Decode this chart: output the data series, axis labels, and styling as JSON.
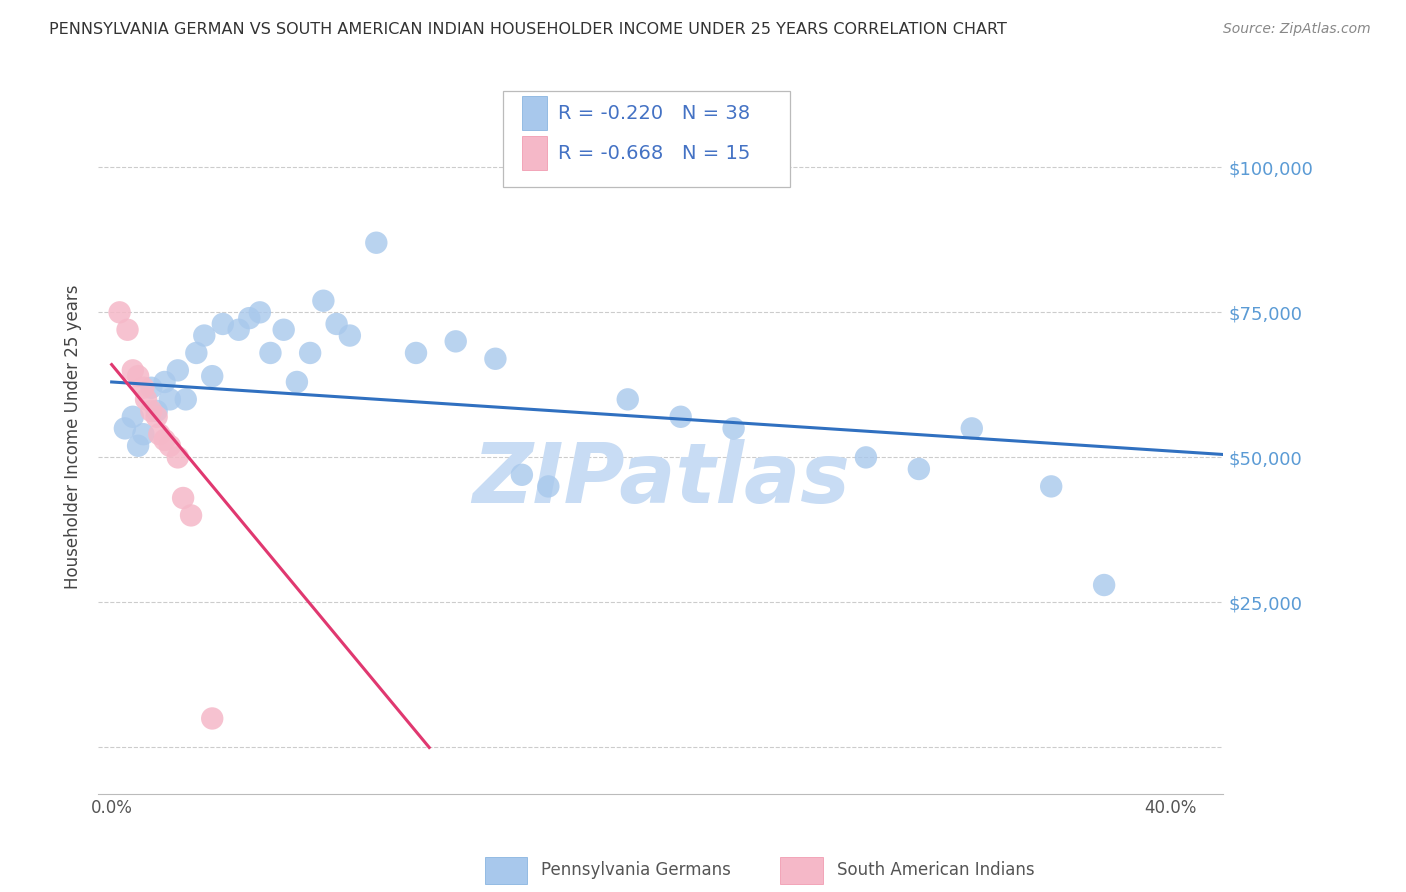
{
  "title": "PENNSYLVANIA GERMAN VS SOUTH AMERICAN INDIAN HOUSEHOLDER INCOME UNDER 25 YEARS CORRELATION CHART",
  "source": "Source: ZipAtlas.com",
  "ylabel": "Householder Income Under 25 years",
  "xlim": [
    -0.005,
    0.42
  ],
  "ylim": [
    -8000,
    115000
  ],
  "xticks": [
    0.0,
    0.05,
    0.1,
    0.15,
    0.2,
    0.25,
    0.3,
    0.35,
    0.4
  ],
  "xticklabels": [
    "0.0%",
    "",
    "",
    "",
    "",
    "",
    "",
    "",
    "40.0%"
  ],
  "ytick_values": [
    0,
    25000,
    50000,
    75000,
    100000
  ],
  "ytick_labels": [
    "",
    "$25,000",
    "$50,000",
    "$75,000",
    "$100,000"
  ],
  "blue_scatter_color": "#A8C8EC",
  "pink_scatter_color": "#F5B8C8",
  "blue_line_color": "#3070C0",
  "pink_line_color": "#E03870",
  "watermark_color": "#C8DCF4",
  "legend_blue_r": "R = -0.220",
  "legend_blue_n": "N = 38",
  "legend_pink_r": "R = -0.668",
  "legend_pink_n": "N = 15",
  "legend_blue_label": "Pennsylvania Germans",
  "legend_pink_label": "South American Indians",
  "legend_text_color": "#4472C4",
  "blue_scatter_x": [
    0.005,
    0.008,
    0.01,
    0.012,
    0.015,
    0.017,
    0.02,
    0.022,
    0.025,
    0.028,
    0.032,
    0.035,
    0.038,
    0.042,
    0.048,
    0.052,
    0.056,
    0.06,
    0.065,
    0.07,
    0.075,
    0.08,
    0.085,
    0.09,
    0.1,
    0.115,
    0.13,
    0.145,
    0.155,
    0.165,
    0.195,
    0.215,
    0.235,
    0.285,
    0.305,
    0.325,
    0.355,
    0.375
  ],
  "blue_scatter_y": [
    55000,
    57000,
    52000,
    54000,
    62000,
    58000,
    63000,
    60000,
    65000,
    60000,
    68000,
    71000,
    64000,
    73000,
    72000,
    74000,
    75000,
    68000,
    72000,
    63000,
    68000,
    77000,
    73000,
    71000,
    87000,
    68000,
    70000,
    67000,
    47000,
    45000,
    60000,
    57000,
    55000,
    50000,
    48000,
    55000,
    45000,
    28000
  ],
  "pink_scatter_x": [
    0.003,
    0.006,
    0.008,
    0.01,
    0.012,
    0.013,
    0.015,
    0.017,
    0.018,
    0.02,
    0.022,
    0.025,
    0.027,
    0.03,
    0.038
  ],
  "pink_scatter_y": [
    75000,
    72000,
    65000,
    64000,
    62000,
    60000,
    58000,
    57000,
    54000,
    53000,
    52000,
    50000,
    43000,
    40000,
    5000
  ],
  "blue_trend_x": [
    0.0,
    0.42
  ],
  "blue_trend_y": [
    63000,
    50500
  ],
  "pink_trend_x": [
    0.0,
    0.12
  ],
  "pink_trend_y": [
    66000,
    0
  ],
  "background_color": "#FFFFFF",
  "grid_color": "#CCCCCC",
  "title_color": "#333333",
  "right_tick_color": "#5B9BD5"
}
